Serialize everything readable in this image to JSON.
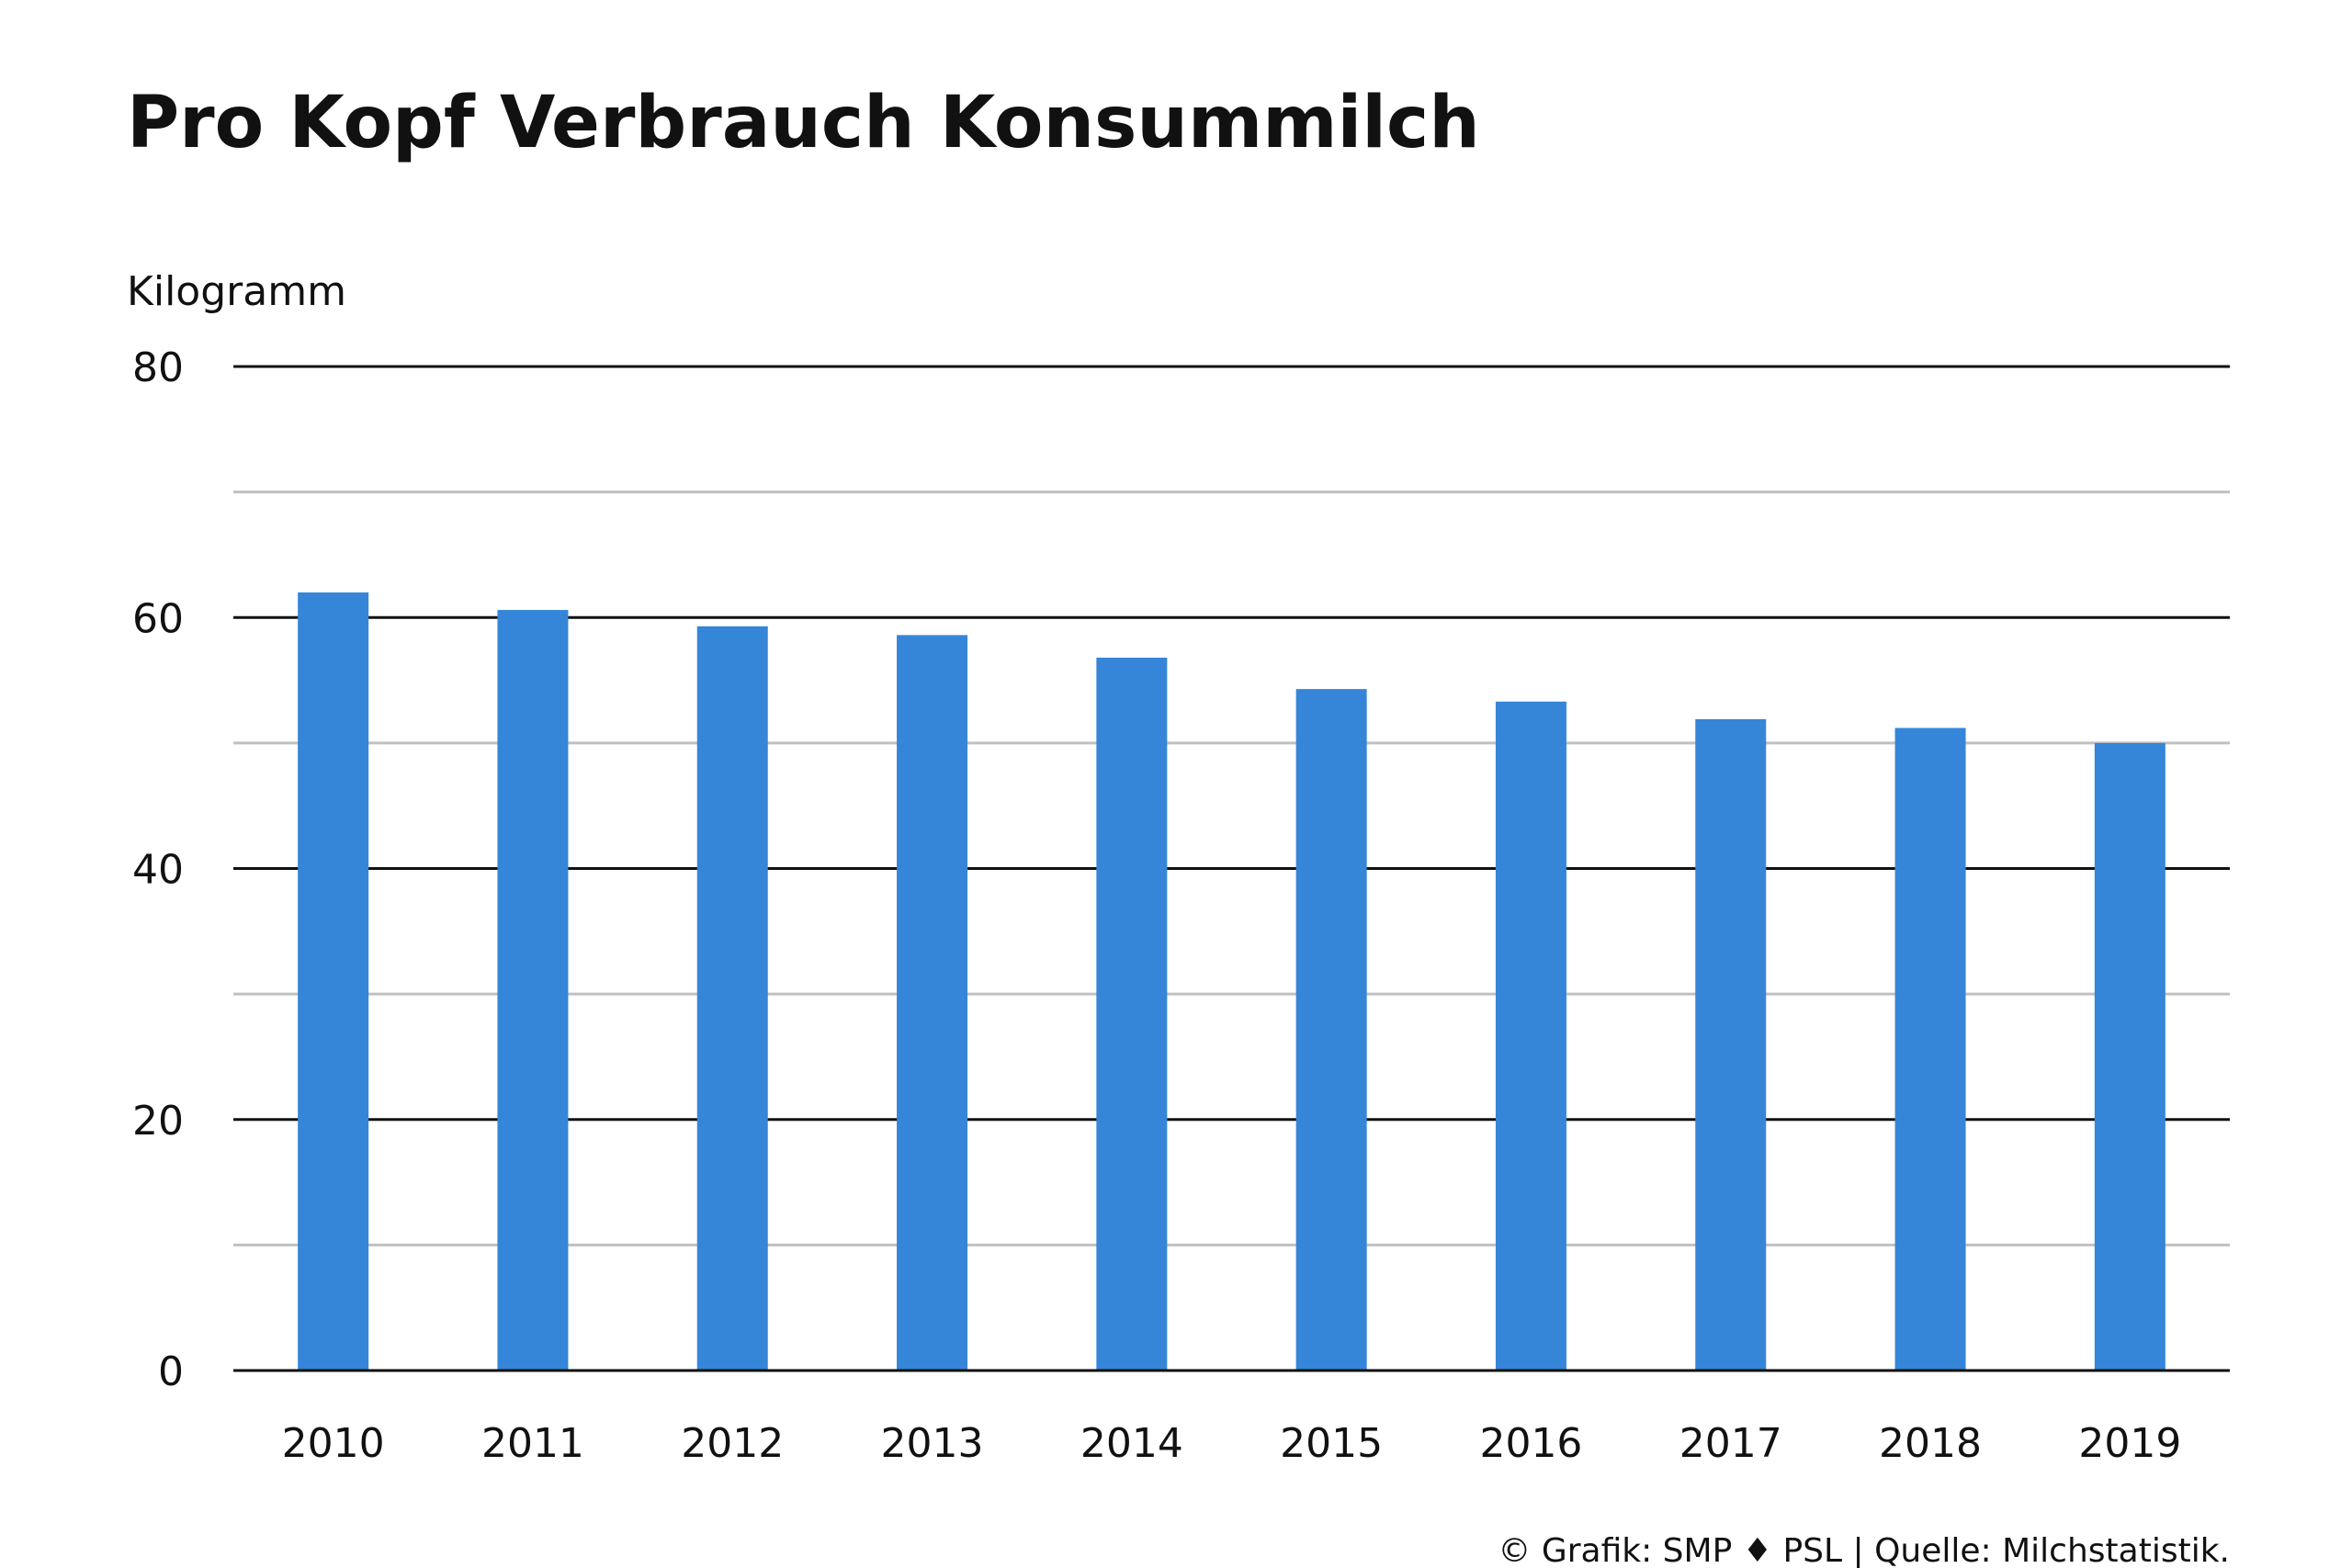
{
  "chart_data": {
    "type": "bar",
    "title": "Pro Kopf Verbrauch Konsummilch",
    "ylabel": "Kilogramm",
    "xlabel": "",
    "categories": [
      "2010",
      "2011",
      "2012",
      "2013",
      "2014",
      "2015",
      "2016",
      "2017",
      "2018",
      "2019"
    ],
    "values": [
      62.0,
      60.6,
      59.3,
      58.6,
      56.8,
      54.3,
      53.3,
      51.9,
      51.2,
      50.0
    ],
    "ylim": [
      0,
      80
    ],
    "yticks": [
      0,
      20,
      40,
      60,
      80
    ],
    "ytick_labels": [
      "0",
      "20",
      "40",
      "60",
      "80"
    ],
    "minor_gridlines": [
      10,
      30,
      50,
      70
    ],
    "grid": true,
    "legend": "none",
    "bar_color": "#3586d8",
    "major_grid_color": "#111111",
    "minor_grid_color": "#c0c0c0"
  },
  "footer": {
    "source": "© Grafik: SMP ♦ PSL | Quelle: Milchstatistik."
  }
}
